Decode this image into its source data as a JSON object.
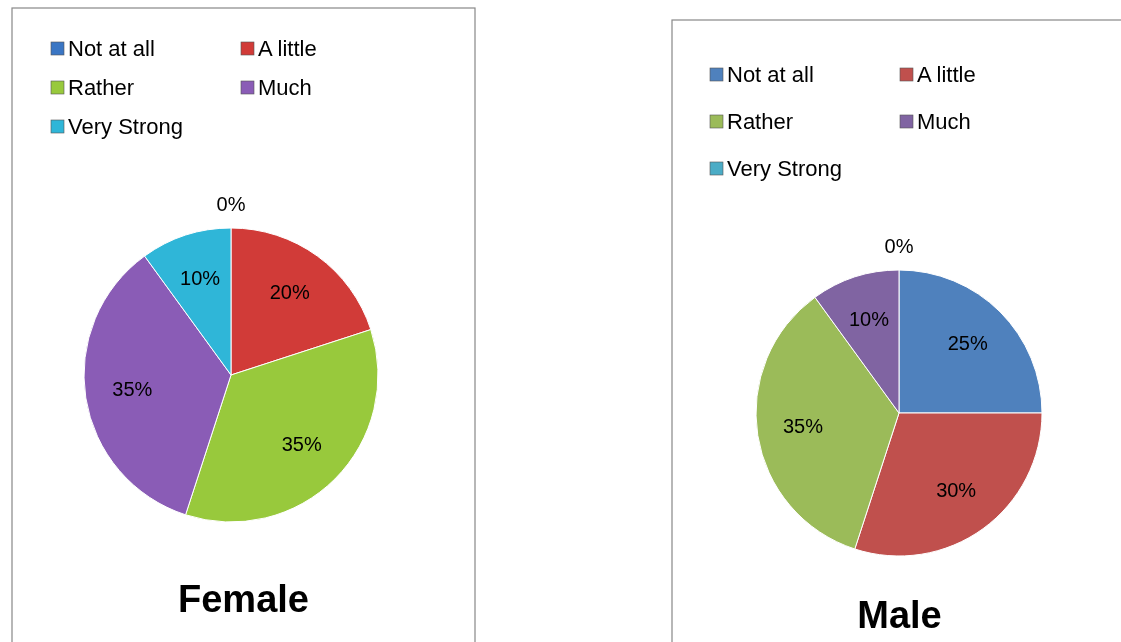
{
  "chart_data": [
    {
      "type": "pie",
      "title": "Female",
      "categories": [
        "Not at all",
        "A little",
        "Rather",
        "Much",
        "Very Strong"
      ],
      "values": [
        0,
        20,
        35,
        35,
        10
      ],
      "value_labels": [
        "0%",
        "20%",
        "35%",
        "35%",
        "10%"
      ],
      "colors": [
        "#3a76c4",
        "#d13b38",
        "#98c93c",
        "#8a5cb6",
        "#2fb6d8"
      ],
      "legend": "top"
    },
    {
      "type": "pie",
      "title": "Male",
      "categories": [
        "Not at all",
        "A little",
        "Rather",
        "Much",
        "Very Strong"
      ],
      "values": [
        25,
        30,
        35,
        10,
        0
      ],
      "value_labels": [
        "25%",
        "30%",
        "35%",
        "10%",
        "0%"
      ],
      "colors": [
        "#4f81bd",
        "#c0504d",
        "#9bbb59",
        "#8064a2",
        "#4bacc6"
      ],
      "legend": "top"
    }
  ]
}
